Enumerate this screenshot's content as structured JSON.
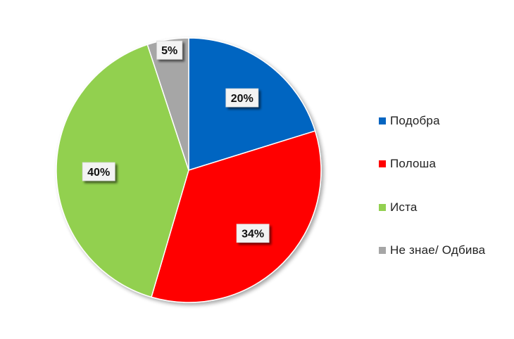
{
  "chart_data": {
    "type": "pie",
    "slices": [
      {
        "label": "Подобра",
        "value": 20,
        "display": "20%",
        "color": "#0565C1"
      },
      {
        "label": "Полоша",
        "value": 34,
        "display": "34%",
        "color": "#FF0000"
      },
      {
        "label": "Иста",
        "value": 40,
        "display": "40%",
        "color": "#92D050"
      },
      {
        "label": "Не знае/ Одбива",
        "value": 5,
        "display": "5%",
        "color": "#A6A6A6"
      }
    ],
    "legend_position": "right"
  }
}
